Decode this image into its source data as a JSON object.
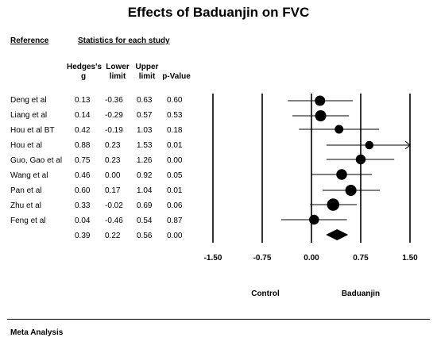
{
  "title": "Effects of Baduanjin on FVC",
  "headers": {
    "reference": "Reference",
    "stats": "Statistics for each study",
    "g_line1": "Hedges's",
    "g_line2": "g",
    "lower_line1": "Lower",
    "lower_line2": "limit",
    "upper_line1": "Upper",
    "upper_line2": "limit",
    "p": "p-Value"
  },
  "studies": [
    {
      "name": "Deng et al",
      "g": "0.13",
      "lower": "-0.36",
      "upper": "0.63",
      "p": "0.60"
    },
    {
      "name": "Liang et al",
      "g": "0.14",
      "lower": "-0.29",
      "upper": "0.57",
      "p": "0.53"
    },
    {
      "name": "Hou et al  BT",
      "g": "0.42",
      "lower": "-0.19",
      "upper": "1.03",
      "p": "0.18"
    },
    {
      "name": "Hou et al",
      "g": "0.88",
      "lower": "0.23",
      "upper": "1.53",
      "p": "0.01"
    },
    {
      "name": "Guo, Gao et al",
      "g": "0.75",
      "lower": "0.23",
      "upper": "1.26",
      "p": "0.00"
    },
    {
      "name": "Wang et al",
      "g": "0.46",
      "lower": "0.00",
      "upper": "0.92",
      "p": "0.05"
    },
    {
      "name": "Pan et al",
      "g": "0.60",
      "lower": "0.17",
      "upper": "1.04",
      "p": "0.01"
    },
    {
      "name": "Zhu et al",
      "g": "0.33",
      "lower": "-0.02",
      "upper": "0.69",
      "p": "0.06"
    },
    {
      "name": "Feng et al",
      "g": "0.04",
      "lower": "-0.46",
      "upper": "0.54",
      "p": "0.87"
    }
  ],
  "summary": {
    "g": "0.39",
    "lower": "0.22",
    "upper": "0.56",
    "p": "0.00"
  },
  "footer": "Meta Analysis",
  "chart_data": {
    "type": "forest",
    "title": "Effects of Baduanjin on FVC",
    "xlim": [
      -1.5,
      1.5
    ],
    "x_ticks": [
      "-1.50",
      "-0.75",
      "0.00",
      "0.75",
      "1.50"
    ],
    "x_tick_values": [
      -1.5,
      -0.75,
      0,
      0.75,
      1.5
    ],
    "left_label": "Control",
    "right_label": "Baduanjin",
    "points": [
      {
        "study": "Deng et al",
        "g": 0.13,
        "lower": -0.36,
        "upper": 0.63,
        "weight": 0.5
      },
      {
        "study": "Liang et al",
        "g": 0.14,
        "lower": -0.29,
        "upper": 0.57,
        "weight": 0.6
      },
      {
        "study": "Hou et al  BT",
        "g": 0.42,
        "lower": -0.19,
        "upper": 1.03,
        "weight": 0.3
      },
      {
        "study": "Hou et al",
        "g": 0.88,
        "lower": 0.23,
        "upper": 1.53,
        "weight": 0.25,
        "arrow_right": true
      },
      {
        "study": "Guo, Gao et al",
        "g": 0.75,
        "lower": 0.23,
        "upper": 1.26,
        "weight": 0.45
      },
      {
        "study": "Wang et al",
        "g": 0.46,
        "lower": 0.0,
        "upper": 0.92,
        "weight": 0.55
      },
      {
        "study": "Pan et al",
        "g": 0.6,
        "lower": 0.17,
        "upper": 1.04,
        "weight": 0.6
      },
      {
        "study": "Zhu et al",
        "g": 0.33,
        "lower": -0.02,
        "upper": 0.69,
        "weight": 0.75
      },
      {
        "study": "Feng et al",
        "g": 0.04,
        "lower": -0.46,
        "upper": 0.54,
        "weight": 0.45
      }
    ],
    "summary": {
      "g": 0.39,
      "lower": 0.22,
      "upper": 0.56
    },
    "grid": false
  }
}
